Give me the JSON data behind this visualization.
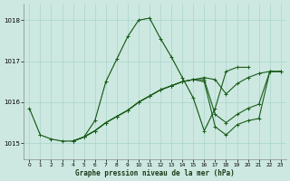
{
  "background_color": "#cce8e0",
  "grid_color": "#aad4cc",
  "line_color": "#1a5c1a",
  "ylim": [
    1014.6,
    1018.4
  ],
  "xlim": [
    -0.5,
    23.5
  ],
  "yticks": [
    1015,
    1016,
    1017,
    1018
  ],
  "xtick_labels": [
    "0",
    "1",
    "2",
    "3",
    "4",
    "5",
    "6",
    "7",
    "8",
    "9",
    "10",
    "11",
    "12",
    "13",
    "14",
    "15",
    "16",
    "17",
    "18",
    "19",
    "20",
    "21",
    "22",
    "23"
  ],
  "xlabel": "Graphe pression niveau de la mer (hPa)",
  "series": {
    "main": {
      "x": [
        0,
        1,
        2,
        3,
        4,
        5,
        6,
        7,
        8,
        9,
        10,
        11,
        12,
        13,
        14,
        15,
        16,
        17,
        18,
        19,
        20,
        21,
        22,
        23
      ],
      "y": [
        1015.85,
        1015.2,
        1015.1,
        1015.05,
        1015.05,
        1015.15,
        1015.55,
        1016.5,
        1017.05,
        1017.6,
        1018.0,
        1018.05,
        1017.55,
        1017.1,
        1016.6,
        1016.1,
        1015.3,
        1015.85,
        1016.75,
        1016.85,
        1016.85,
        null,
        null,
        null
      ],
      "linestyle": "-",
      "marker": true
    },
    "dotted": {
      "x": [
        0,
        1,
        2,
        3,
        4,
        5,
        6,
        7,
        8,
        9,
        10,
        11,
        12,
        13,
        14,
        15,
        16,
        17
      ],
      "y": [
        1015.85,
        1015.2,
        1015.1,
        1015.05,
        1015.05,
        1015.15,
        1015.55,
        1016.5,
        1017.05,
        1017.6,
        1018.0,
        1018.05,
        1017.55,
        1017.1,
        1016.6,
        1016.1,
        1015.3,
        1015.85
      ],
      "linestyle": ":",
      "marker": false
    },
    "flat1": {
      "x": [
        4,
        5,
        6,
        7,
        8,
        9,
        10,
        11,
        12,
        13,
        14,
        15,
        16,
        17,
        18,
        19,
        20,
        21,
        22,
        23
      ],
      "y": [
        1015.05,
        1015.15,
        1015.3,
        1015.5,
        1015.65,
        1015.8,
        1016.0,
        1016.15,
        1016.3,
        1016.4,
        1016.5,
        1016.55,
        1016.6,
        1016.55,
        1016.2,
        1016.45,
        1016.6,
        1016.7,
        1016.75,
        1016.75
      ],
      "linestyle": "-",
      "marker": true
    },
    "flat2": {
      "x": [
        4,
        5,
        6,
        7,
        8,
        9,
        10,
        11,
        12,
        13,
        14,
        15,
        16,
        17,
        18,
        19,
        20,
        21,
        22,
        23
      ],
      "y": [
        1015.05,
        1015.15,
        1015.3,
        1015.5,
        1015.65,
        1015.8,
        1016.0,
        1016.15,
        1016.3,
        1016.4,
        1016.5,
        1016.55,
        1016.55,
        1015.7,
        1015.5,
        1015.7,
        1015.85,
        1015.95,
        1016.75,
        1016.75
      ],
      "linestyle": "-",
      "marker": true
    },
    "flat3": {
      "x": [
        4,
        5,
        6,
        7,
        8,
        9,
        10,
        11,
        12,
        13,
        14,
        15,
        16,
        17,
        18,
        19,
        20,
        21,
        22,
        23
      ],
      "y": [
        1015.05,
        1015.15,
        1015.3,
        1015.5,
        1015.65,
        1015.8,
        1016.0,
        1016.15,
        1016.3,
        1016.4,
        1016.5,
        1016.55,
        1016.5,
        1015.4,
        1015.2,
        1015.45,
        1015.55,
        1015.6,
        1016.75,
        1016.75
      ],
      "linestyle": "-",
      "marker": true
    }
  }
}
